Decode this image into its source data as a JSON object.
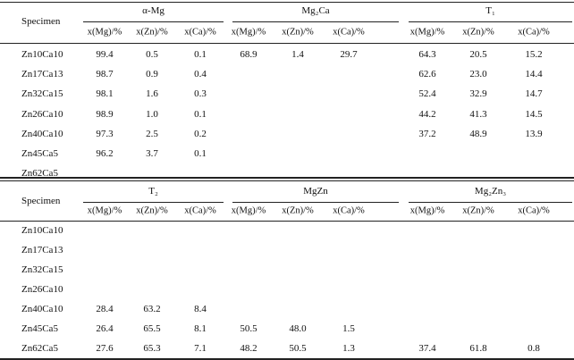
{
  "tables": [
    {
      "header": {
        "row_label": "Specimen",
        "groups": [
          "α-Mg",
          "Mg₂Ca",
          "T₁"
        ],
        "columns": [
          "x(Mg)/%",
          "x(Zn)/%",
          "x(Ca)/%",
          "x(Mg)/%",
          "x(Zn)/%",
          "x(Ca)/%",
          "x(Mg)/%",
          "x(Zn)/%",
          "x(Ca)/%"
        ]
      },
      "rows": [
        {
          "specimen": "Zn10Ca10",
          "values": [
            "99.4",
            "0.5",
            "0.1",
            "68.9",
            "1.4",
            "29.7",
            "64.3",
            "20.5",
            "15.2"
          ]
        },
        {
          "specimen": "Zn17Ca13",
          "values": [
            "98.7",
            "0.9",
            "0.4",
            null,
            null,
            null,
            "62.6",
            "23.0",
            "14.4"
          ]
        },
        {
          "specimen": "Zn32Ca15",
          "values": [
            "98.1",
            "1.6",
            "0.3",
            null,
            null,
            null,
            "52.4",
            "32.9",
            "14.7"
          ]
        },
        {
          "specimen": "Zn26Ca10",
          "values": [
            "98.9",
            "1.0",
            "0.1",
            null,
            null,
            null,
            "44.2",
            "41.3",
            "14.5"
          ]
        },
        {
          "specimen": "Zn40Ca10",
          "values": [
            "97.3",
            "2.5",
            "0.2",
            null,
            null,
            null,
            "37.2",
            "48.9",
            "13.9"
          ]
        },
        {
          "specimen": "Zn45Ca5",
          "values": [
            "96.2",
            "3.7",
            "0.1",
            null,
            null,
            null,
            null,
            null,
            null
          ]
        },
        {
          "specimen": "Zn62Ca5",
          "values": [
            null,
            null,
            null,
            null,
            null,
            null,
            null,
            null,
            null
          ]
        }
      ]
    },
    {
      "header": {
        "row_label": "Specimen",
        "groups": [
          "T₂",
          "MgZn",
          "Mg₂Zn₃"
        ],
        "columns": [
          "x(Mg)/%",
          "x(Zn)/%",
          "x(Ca)/%",
          "x(Mg)/%",
          "x(Zn)/%",
          "x(Ca)/%",
          "x(Mg)/%",
          "x(Zn)/%",
          "x(Ca)/%"
        ]
      },
      "rows": [
        {
          "specimen": "Zn10Ca10",
          "values": [
            null,
            null,
            null,
            null,
            null,
            null,
            null,
            null,
            null
          ]
        },
        {
          "specimen": "Zn17Ca13",
          "values": [
            null,
            null,
            null,
            null,
            null,
            null,
            null,
            null,
            null
          ]
        },
        {
          "specimen": "Zn32Ca15",
          "values": [
            null,
            null,
            null,
            null,
            null,
            null,
            null,
            null,
            null
          ]
        },
        {
          "specimen": "Zn26Ca10",
          "values": [
            null,
            null,
            null,
            null,
            null,
            null,
            null,
            null,
            null
          ]
        },
        {
          "specimen": "Zn40Ca10",
          "values": [
            "28.4",
            "63.2",
            "8.4",
            null,
            null,
            null,
            null,
            null,
            null
          ]
        },
        {
          "specimen": "Zn45Ca5",
          "values": [
            "26.4",
            "65.5",
            "8.1",
            "50.5",
            "48.0",
            "1.5",
            null,
            null,
            null
          ]
        },
        {
          "specimen": "Zn62Ca5",
          "values": [
            "27.6",
            "65.3",
            "7.1",
            "48.2",
            "50.5",
            "1.3",
            "37.4",
            "61.8",
            "0.8"
          ]
        }
      ]
    }
  ]
}
